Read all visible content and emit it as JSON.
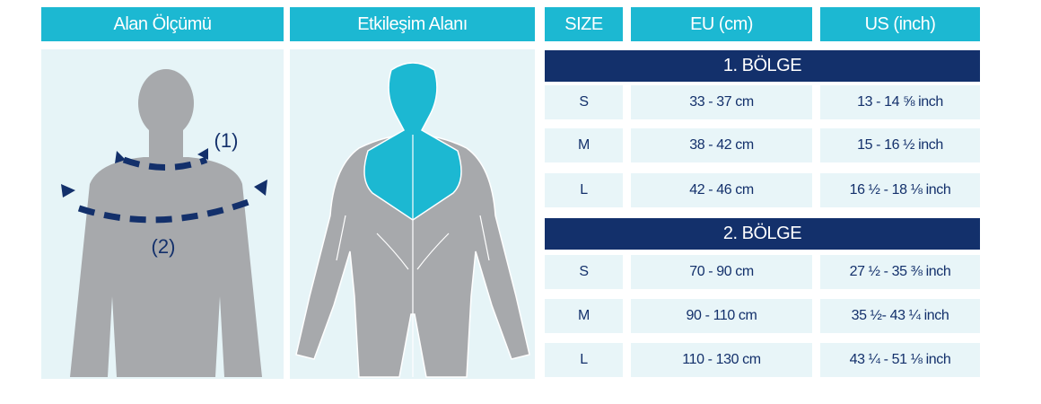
{
  "header": {
    "left_title": "Alan Ölçümü",
    "middle_title": "Etkileşim Alanı"
  },
  "illustration": {
    "labels": [
      "(1)",
      "(2)"
    ]
  },
  "table": {
    "columns": [
      "SIZE",
      "EU (cm)",
      "US (inch)"
    ],
    "sections": [
      {
        "title": "1. BÖLGE",
        "rows": [
          [
            "S",
            "33 - 37 cm",
            "13 - 14 ⅝ inch"
          ],
          [
            "M",
            "38 - 42 cm",
            "15 - 16 ½ inch"
          ],
          [
            "L",
            "42 - 46 cm",
            "16 ½ - 18 ⅛ inch"
          ]
        ]
      },
      {
        "title": "2. BÖLGE",
        "rows": [
          [
            "S",
            "70 - 90 cm",
            "27 ½ - 35 ⅜ inch"
          ],
          [
            "M",
            "90 - 110 cm",
            "35 ½- 43 ¼ inch"
          ],
          [
            "L",
            "110 - 130 cm",
            "43 ¼ - 51 ⅛ inch"
          ]
        ]
      }
    ]
  }
}
